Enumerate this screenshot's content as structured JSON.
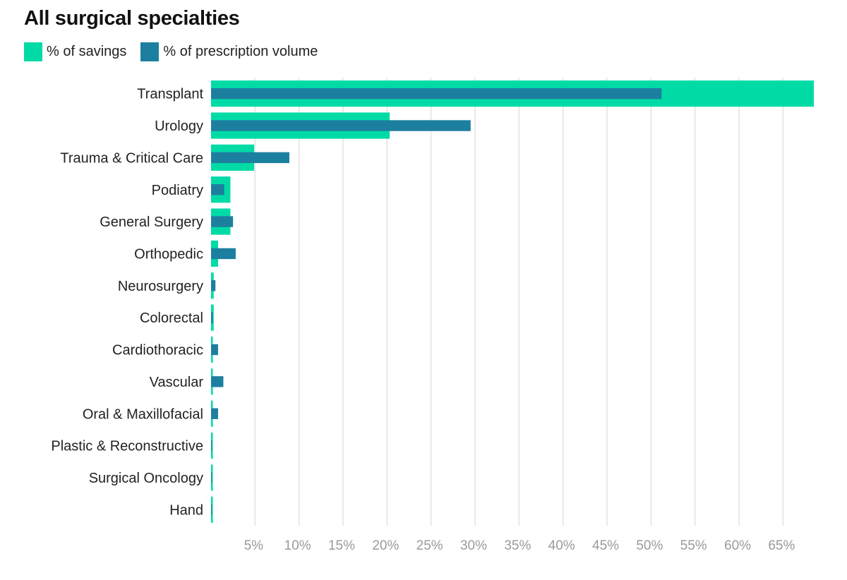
{
  "colors": {
    "savings": "#00DBA6",
    "volume": "#1D7FA0",
    "grid": "#E3E3E3",
    "tick": "#9A9A9A"
  },
  "chart_data": {
    "type": "bar",
    "orientation": "horizontal",
    "title": "All surgical specialties",
    "legend_position": "top-left",
    "grid": true,
    "xlim": [
      0,
      68.5
    ],
    "xticks": [
      "5%",
      "10%",
      "15%",
      "20%",
      "25%",
      "30%",
      "35%",
      "40%",
      "45%",
      "50%",
      "55%",
      "60%",
      "65%"
    ],
    "xtick_values": [
      5,
      10,
      15,
      20,
      25,
      30,
      35,
      40,
      45,
      50,
      55,
      60,
      65
    ],
    "categories": [
      "Transplant",
      "Urology",
      "Trauma & Critical Care",
      "Podiatry",
      "General Surgery",
      "Orthopedic",
      "Neurosurgery",
      "Colorectal",
      "Cardiothoracic",
      "Vascular",
      "Oral & Maxillofacial",
      "Plastic & Reconstructive",
      "Surgical Oncology",
      "Hand"
    ],
    "series": [
      {
        "name": "% of savings",
        "values": [
          68.5,
          20.3,
          4.9,
          2.2,
          2.2,
          0.8,
          0.3,
          0.3,
          0.2,
          0.2,
          0.2,
          0.2,
          0.2,
          0.2
        ]
      },
      {
        "name": "% of prescription volume",
        "values": [
          51.2,
          29.5,
          8.9,
          1.5,
          2.5,
          2.8,
          0.5,
          0.2,
          0.8,
          1.4,
          0.8,
          0.1,
          0.1,
          0.1
        ]
      }
    ]
  }
}
